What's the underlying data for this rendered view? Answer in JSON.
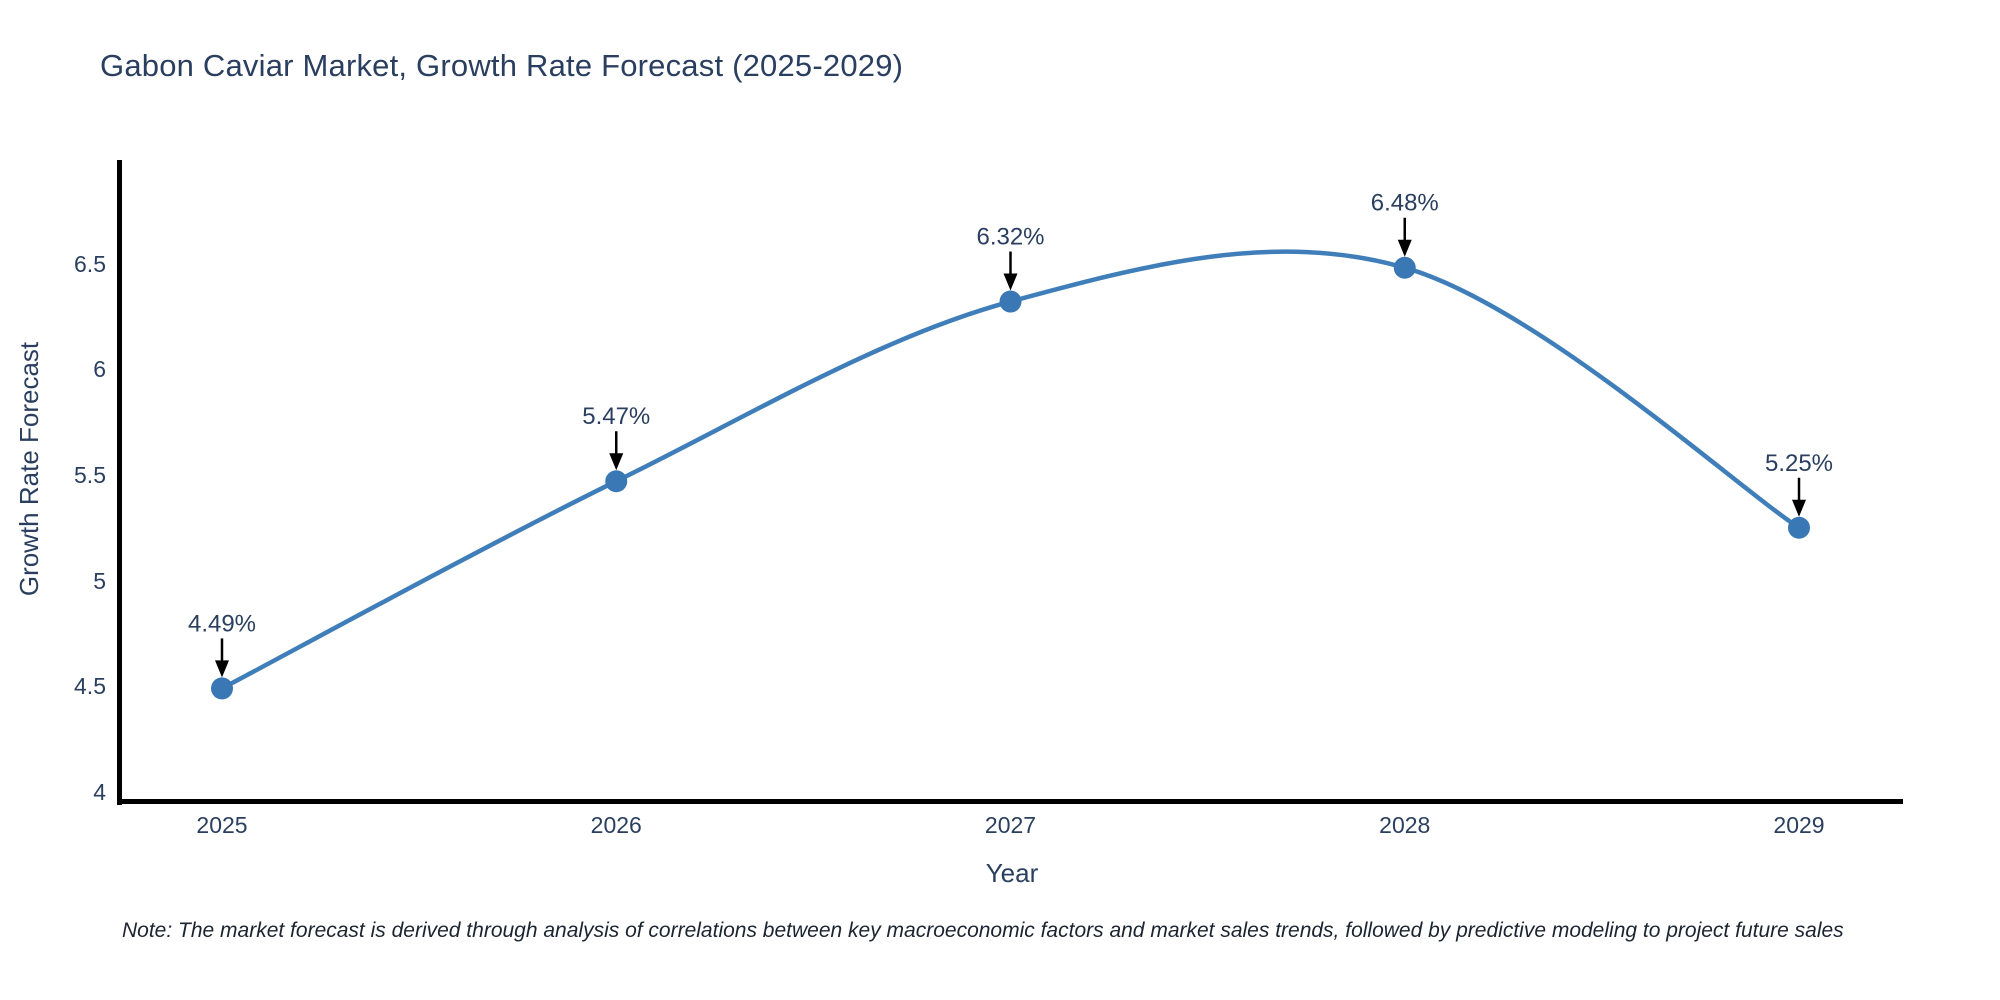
{
  "title": "Gabon Caviar Market, Growth Rate Forecast (2025-2029)",
  "note": "Note: The market forecast is derived through analysis of correlations between key macroeconomic factors and market sales trends, followed by predictive modeling to project future sales",
  "colors": {
    "line": "#3f7eb9",
    "marker": "#3a78b5",
    "text": "#2a3f5f",
    "axis": "#000000",
    "arrow": "#000000",
    "bg": "#ffffff",
    "note": "#1c2430"
  },
  "chart_data": {
    "type": "line",
    "line_shape": "spline",
    "title": "Gabon Caviar Market, Growth Rate Forecast (2025-2029)",
    "xlabel": "Year",
    "ylabel": "Growth Rate Forecast",
    "x": [
      2025,
      2026,
      2027,
      2028,
      2029
    ],
    "values": [
      4.49,
      5.47,
      6.32,
      6.48,
      5.25
    ],
    "series": [
      {
        "name": "Growth Rate Forecast",
        "values": [
          4.49,
          5.47,
          6.32,
          6.48,
          5.25
        ]
      }
    ],
    "point_labels": [
      "4.49%",
      "5.47%",
      "6.32%",
      "6.48%",
      "5.25%"
    ],
    "xtick_labels": [
      "2025",
      "2026",
      "2027",
      "2028",
      "2029"
    ],
    "ytick_values": [
      4,
      4.5,
      5,
      5.5,
      6,
      6.5
    ],
    "ytick_labels": [
      "4",
      "4.5",
      "5",
      "5.5",
      "6",
      "6.5"
    ],
    "ylim": [
      3.96,
      7.0
    ],
    "grid": false,
    "legend": false,
    "markers": true,
    "annotations_have_arrows": true
  }
}
